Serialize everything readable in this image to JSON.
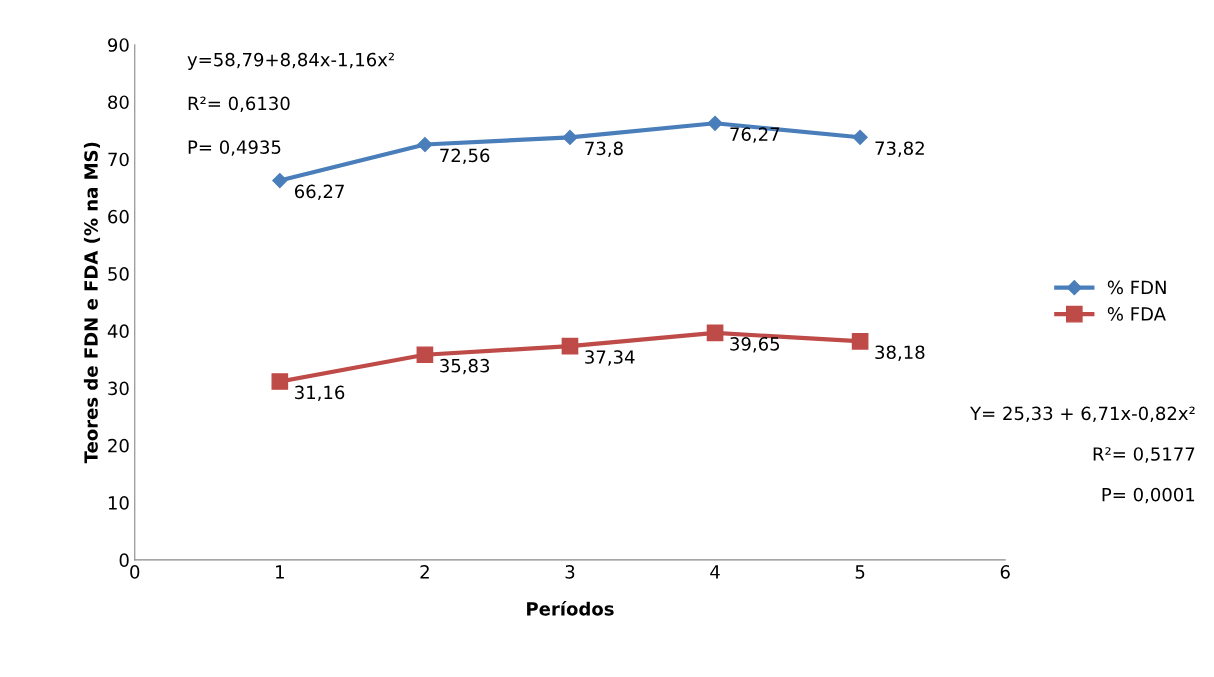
{
  "chart_data": {
    "type": "line",
    "xlabel": "Períodos",
    "ylabel": "Teores de FDN e FDA (% na MS)",
    "x": [
      1,
      2,
      3,
      4,
      5
    ],
    "series": [
      {
        "name": "% FDN",
        "color": "#4a7ebb",
        "marker": "diamond",
        "values": [
          66.27,
          72.56,
          73.8,
          76.27,
          73.82
        ],
        "value_labels": [
          "66,27",
          "72,56",
          "73,8",
          "76,27",
          "73,82"
        ]
      },
      {
        "name": "% FDA",
        "color": "#be4b48",
        "marker": "square",
        "values": [
          31.16,
          35.83,
          37.34,
          39.65,
          38.18
        ],
        "value_labels": [
          "31,16",
          "35,83",
          "37,34",
          "39,65",
          "38,18"
        ]
      }
    ],
    "xlim": [
      0,
      6
    ],
    "xticks": [
      0,
      1,
      2,
      3,
      4,
      5,
      6
    ],
    "ylim": [
      0,
      90
    ],
    "yticks": [
      0,
      10,
      20,
      30,
      40,
      50,
      60,
      70,
      80,
      90
    ],
    "grid": false,
    "legend": "right",
    "line_style": "solid",
    "annotations": [
      "y=58,79+8,84x-1,16x²",
      "R²= 0,6130",
      "P= 0,4935",
      "Y= 25,33 + 6,71x-0,82x²",
      "R²= 0,5177",
      "P= 0,0001"
    ]
  }
}
